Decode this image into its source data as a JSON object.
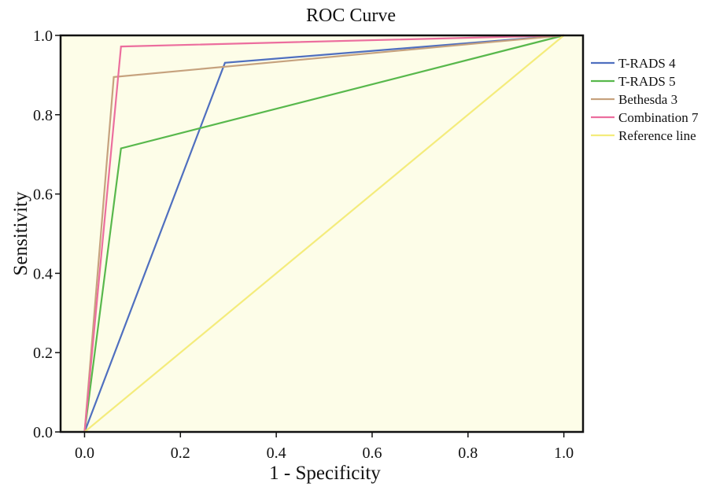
{
  "chart_data": {
    "type": "line",
    "title": "ROC Curve",
    "xlabel": "1 - Specificity",
    "ylabel": "Sensitivity",
    "xlim": [
      -0.05,
      1.04
    ],
    "ylim": [
      0.0,
      1.0
    ],
    "xticks": [
      "0.0",
      "0.2",
      "0.4",
      "0.6",
      "0.8",
      "1.0"
    ],
    "yticks": [
      "0.0",
      "0.2",
      "0.4",
      "0.6",
      "0.8",
      "1.0"
    ],
    "grid": false,
    "plot_background": "#fdfde8",
    "legend_position": "right",
    "series": [
      {
        "name": "T-RADS 4",
        "color": "#4f6fbf",
        "x": [
          0.0,
          0.293,
          1.0
        ],
        "y": [
          0.0,
          0.931,
          1.0
        ]
      },
      {
        "name": "T-RADS 5",
        "color": "#58b84c",
        "x": [
          0.0,
          0.076,
          1.0
        ],
        "y": [
          0.0,
          0.715,
          1.0
        ]
      },
      {
        "name": "Bethesda 3",
        "color": "#c6a27e",
        "x": [
          0.0,
          0.061,
          1.0
        ],
        "y": [
          0.0,
          0.895,
          1.0
        ]
      },
      {
        "name": "Combination 7",
        "color": "#ec6e9e",
        "x": [
          0.0,
          0.076,
          1.0
        ],
        "y": [
          0.0,
          0.972,
          1.0
        ]
      },
      {
        "name": "Reference line",
        "color": "#f4ec7c",
        "x": [
          0.0,
          1.0
        ],
        "y": [
          0.0,
          1.0
        ]
      }
    ]
  }
}
